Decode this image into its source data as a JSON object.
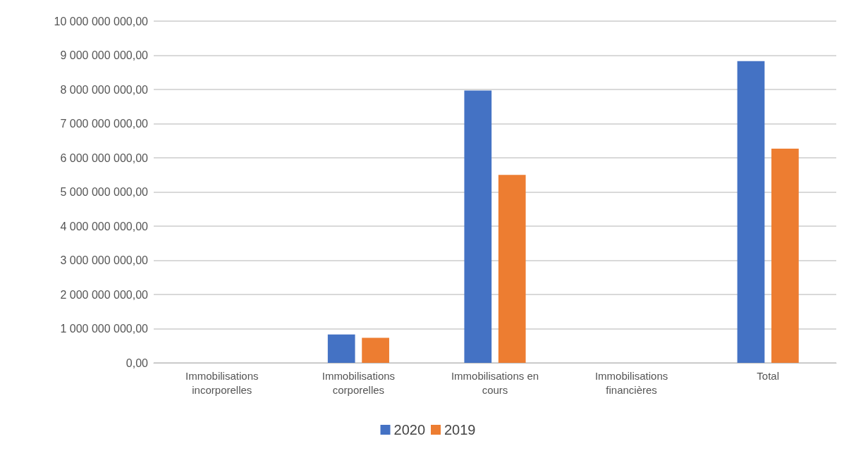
{
  "chart_data": {
    "type": "bar",
    "categories": [
      "Immobilisations\nincorporelles",
      "Immobilisations\ncorporelles",
      "Immobilisations en\ncours",
      "Immobilisations\nfinancières",
      "Total"
    ],
    "series": [
      {
        "name": "2020",
        "color": "#4472c4",
        "values": [
          0,
          830000000,
          7970000000,
          0,
          8830000000
        ]
      },
      {
        "name": "2019",
        "color": "#ed7d31",
        "values": [
          0,
          730000000,
          5500000000,
          0,
          6270000000
        ]
      }
    ],
    "ylim": [
      0,
      10000000000
    ],
    "yticks": [
      {
        "value": 0,
        "label": "0,00"
      },
      {
        "value": 1000000000,
        "label": "1 000 000 000,00"
      },
      {
        "value": 2000000000,
        "label": "2 000 000 000,00"
      },
      {
        "value": 3000000000,
        "label": "3 000 000 000,00"
      },
      {
        "value": 4000000000,
        "label": "4 000 000 000,00"
      },
      {
        "value": 5000000000,
        "label": "5 000 000 000,00"
      },
      {
        "value": 6000000000,
        "label": "6 000 000 000,00"
      },
      {
        "value": 7000000000,
        "label": "7 000 000 000,00"
      },
      {
        "value": 8000000000,
        "label": "8 000 000 000,00"
      },
      {
        "value": 9000000000,
        "label": "9 000 000 000,00"
      },
      {
        "value": 10000000000,
        "label": "10 000 000 000,00"
      }
    ],
    "grid": "y",
    "legend": "bottom"
  }
}
